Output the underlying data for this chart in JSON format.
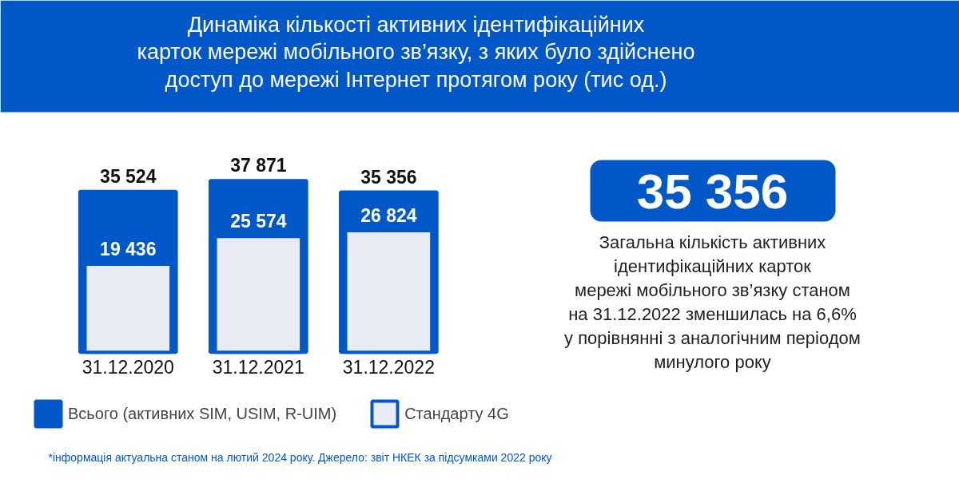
{
  "chart_data": {
    "type": "bar",
    "title": "Динаміка кількості активних ідентифікаційних\nкарток мережі мобільного зв’язку, з яких було здійснено\nдоступ до мережі Інтернет протягом року (тис од.)",
    "categories": [
      "31.12.2020",
      "31.12.2021",
      "31.12.2022"
    ],
    "series": [
      {
        "name": "Всього (активних SIM, USIM, R-UIM)",
        "color": "#0057c8",
        "values": [
          35524,
          37871,
          35356
        ]
      },
      {
        "name": "Стандарту 4G",
        "color": "#e9ecf5",
        "values": [
          19436,
          25574,
          26824
        ]
      }
    ],
    "data_labels": true,
    "legend": "bottom left",
    "grid": false,
    "annotations": [
      "35 356",
      "Загальна кількість активних\nідентифікаційних карток\nмережі мобільного зв’язку станом\nна 31.12.2022 зменшилась на 6,6%\nу порівнянні з аналогічним періодом\nминулого року",
      "*інформація актуальна станом на лютий 2024 року. Джерело: звіт НКЕК за підсумками 2022 року"
    ]
  }
}
